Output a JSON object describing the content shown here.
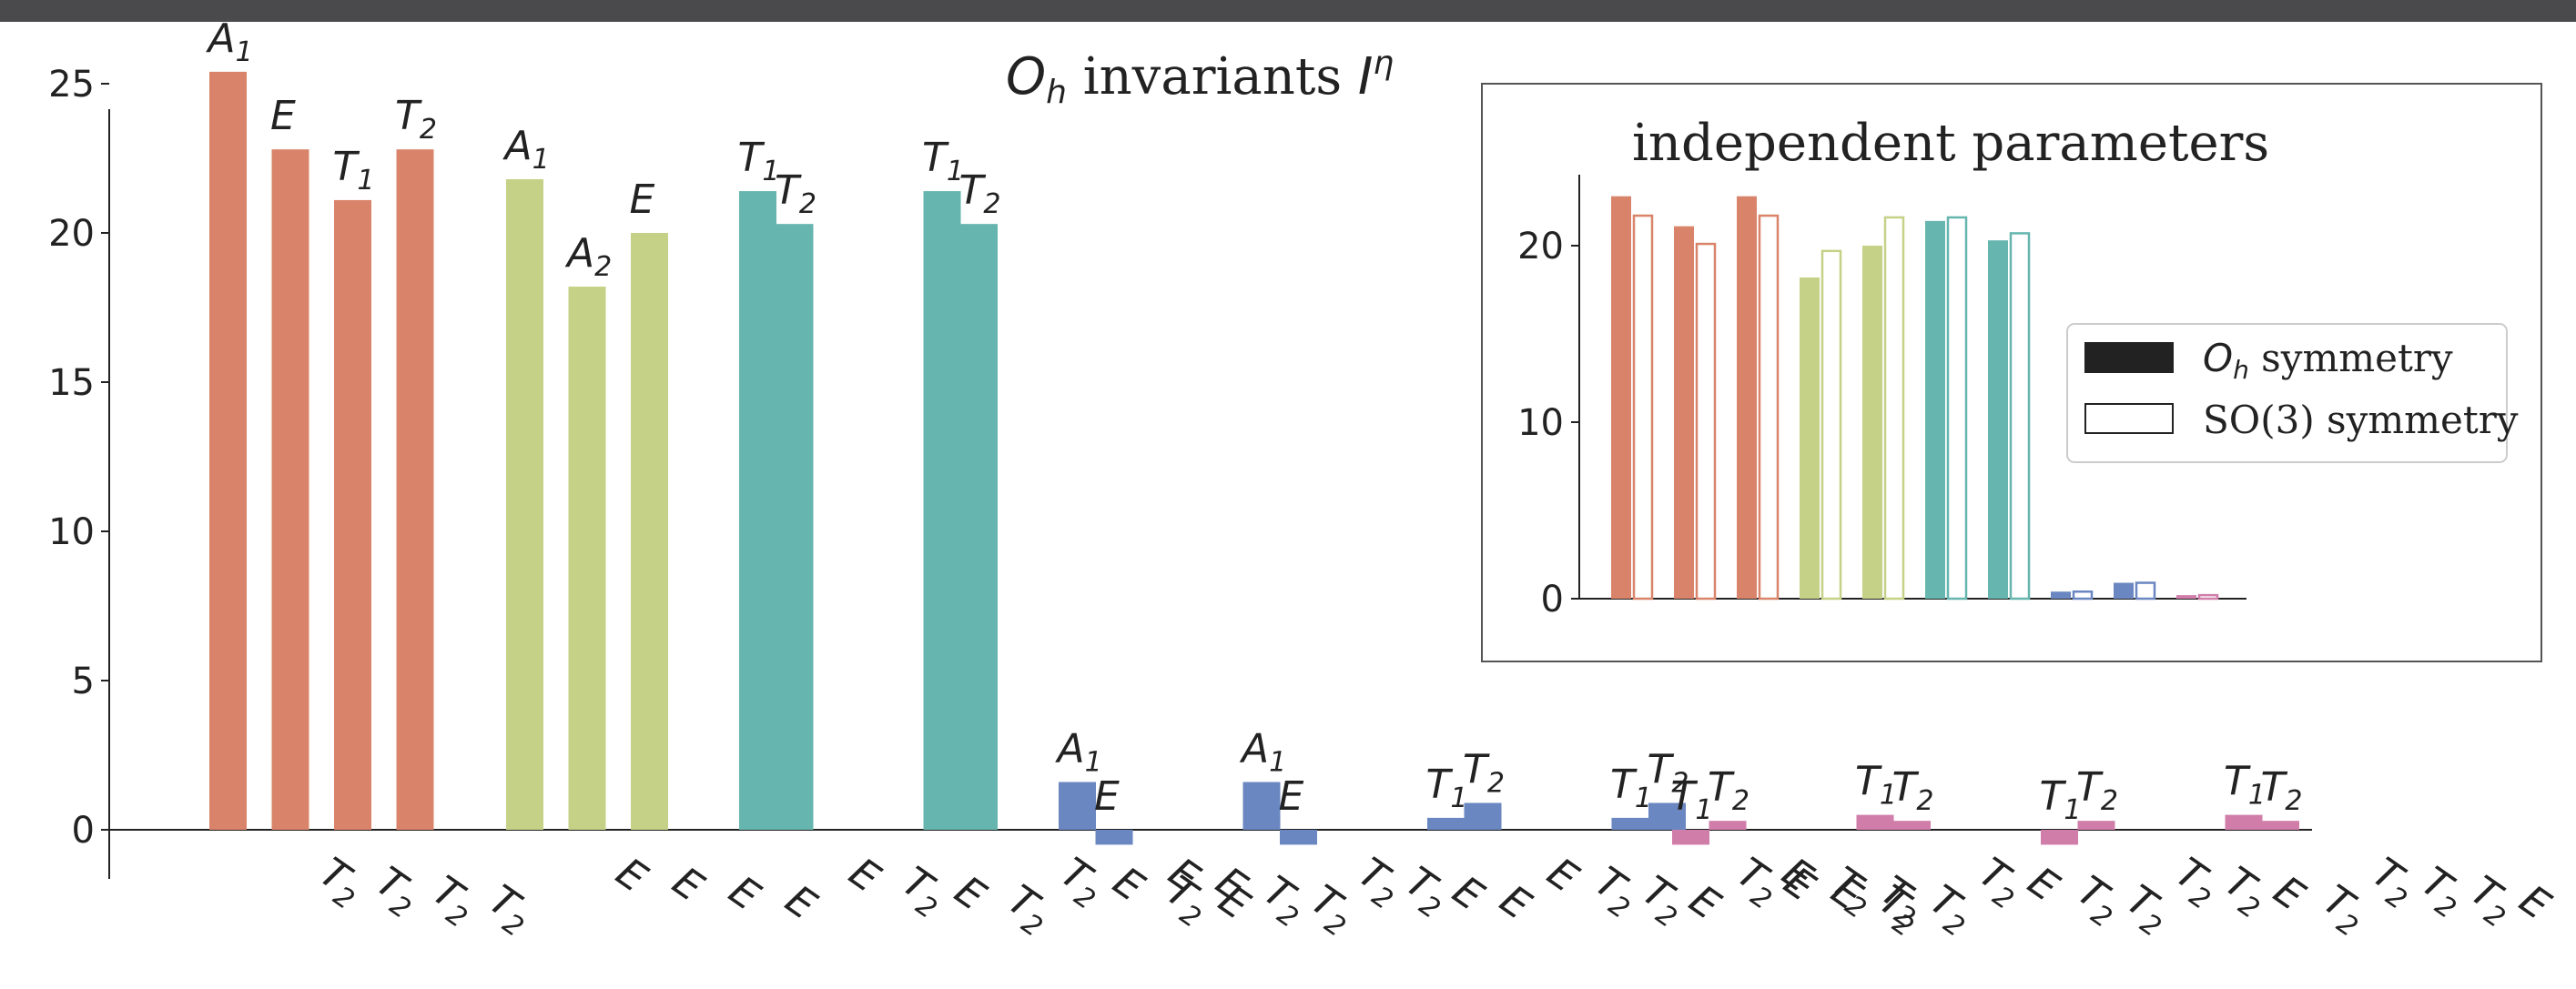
{
  "colors": {
    "group1": "#d9846a",
    "group2": "#c5d186",
    "group3": "#66b5ae",
    "group4": "#6a87c1",
    "group5": "#d07daa"
  },
  "chart_data": [
    {
      "type": "bar",
      "title": "O_h invariants I^η",
      "title_parts": {
        "sym": "O",
        "sub": "h",
        "middle": " invariants ",
        "var": "I",
        "sup": "η"
      },
      "ylim": [
        -1.8,
        26.5
      ],
      "yticks": [
        0,
        5,
        10,
        15,
        20,
        25
      ],
      "groups": [
        {
          "color": "group1",
          "bars": [
            {
              "value": 25.4,
              "top": {
                "base": "A",
                "sub": "1"
              },
              "bottom": {
                "base": "T",
                "sub": "2"
              }
            },
            {
              "value": 22.8,
              "top": {
                "base": "E",
                "sub": ""
              },
              "bottom": {
                "base": "T",
                "sub": "2"
              }
            },
            {
              "value": 21.1,
              "top": {
                "base": "T",
                "sub": "1"
              },
              "bottom": {
                "base": "T",
                "sub": "2"
              }
            },
            {
              "value": 22.8,
              "top": {
                "base": "T",
                "sub": "2"
              },
              "bottom": {
                "base": "T",
                "sub": "2"
              }
            }
          ]
        },
        {
          "color": "group2",
          "bars": [
            {
              "value": 21.8,
              "top": {
                "base": "A",
                "sub": "1"
              },
              "bottom": {
                "base": "E",
                "sub": ""
              }
            },
            {
              "value": 18.2,
              "top": {
                "base": "A",
                "sub": "2"
              },
              "bottom": {
                "base": "E",
                "sub": ""
              }
            },
            {
              "value": 20.0,
              "top": {
                "base": "E",
                "sub": ""
              },
              "bottom": {
                "base": "E",
                "sub": ""
              }
            },
            {
              "value": null,
              "top": null,
              "bottom": {
                "base": "E",
                "sub": ""
              }
            }
          ]
        },
        {
          "color": "group3",
          "bars": [
            {
              "value": 21.4,
              "top": {
                "base": "T",
                "sub": "1"
              },
              "bottom": {
                "base": "E",
                "sub": ""
              }
            },
            {
              "value": 20.3,
              "top": {
                "base": "T",
                "sub": "2"
              },
              "bottom": {
                "base": "T",
                "sub": "2"
              }
            },
            {
              "value": null,
              "top": null,
              "bottom": {
                "base": "E",
                "sub": ""
              }
            },
            {
              "value": null,
              "top": null,
              "bottom": {
                "base": "T",
                "sub": "2"
              }
            },
            {
              "value": 21.4,
              "top": {
                "base": "T",
                "sub": "1"
              },
              "bottom": {
                "base": "T",
                "sub": "2"
              }
            },
            {
              "value": 20.3,
              "top": {
                "base": "T",
                "sub": "2"
              },
              "bottom": {
                "base": "E",
                "sub": ""
              }
            },
            {
              "value": null,
              "top": null,
              "bottom": {
                "base": "T",
                "sub": "2"
              }
            },
            {
              "value": null,
              "top": null,
              "bottom": {
                "base": "E",
                "sub": ""
              }
            }
          ]
        },
        {
          "color": "group4",
          "bars": [
            {
              "value": 1.6,
              "top": {
                "base": "A",
                "sub": "1"
              },
              "bottom": {
                "base": "E",
                "sub": ""
              }
            },
            {
              "value": -0.5,
              "top": {
                "base": "E",
                "sub": ""
              },
              "bottom": {
                "base": "E",
                "sub": ""
              }
            },
            {
              "value": null,
              "top": null,
              "bottom": {
                "base": "T",
                "sub": "2"
              }
            },
            {
              "value": null,
              "top": null,
              "bottom": {
                "base": "T",
                "sub": "2"
              }
            },
            {
              "value": 1.6,
              "top": {
                "base": "A",
                "sub": "1"
              },
              "bottom": {
                "base": "T",
                "sub": "2"
              }
            },
            {
              "value": -0.5,
              "top": {
                "base": "E",
                "sub": ""
              },
              "bottom": {
                "base": "T",
                "sub": "2"
              }
            },
            {
              "value": null,
              "top": null,
              "bottom": {
                "base": "E",
                "sub": ""
              }
            },
            {
              "value": null,
              "top": null,
              "bottom": {
                "base": "E",
                "sub": ""
              }
            },
            {
              "value": 0.4,
              "top": {
                "base": "T",
                "sub": "1"
              },
              "bottom": {
                "base": "E",
                "sub": ""
              }
            },
            {
              "value": 0.9,
              "top": {
                "base": "T",
                "sub": "2"
              },
              "bottom": {
                "base": "T",
                "sub": "2"
              }
            },
            {
              "value": null,
              "top": null,
              "bottom": {
                "base": "T",
                "sub": "2"
              }
            },
            {
              "value": null,
              "top": null,
              "bottom": {
                "base": "E",
                "sub": ""
              }
            },
            {
              "value": 0.4,
              "top": {
                "base": "T",
                "sub": "1"
              },
              "bottom": {
                "base": "T",
                "sub": "2"
              }
            },
            {
              "value": 0.9,
              "top": {
                "base": "T",
                "sub": "2"
              },
              "bottom": {
                "base": "E",
                "sub": ""
              }
            },
            {
              "value": null,
              "top": null,
              "bottom": {
                "base": "E",
                "sub": ""
              }
            },
            {
              "value": null,
              "top": null,
              "bottom": {
                "base": "T",
                "sub": "2"
              }
            }
          ]
        },
        {
          "color": "group5",
          "bars": [
            {
              "value": -0.5,
              "top": {
                "base": "T",
                "sub": "1"
              },
              "bottom": {
                "base": "E",
                "sub": ""
              }
            },
            {
              "value": 0.3,
              "top": {
                "base": "T",
                "sub": "2"
              },
              "bottom": {
                "base": "T",
                "sub": "2"
              }
            },
            {
              "value": null,
              "top": null,
              "bottom": {
                "base": "T",
                "sub": "2"
              }
            },
            {
              "value": null,
              "top": null,
              "bottom": {
                "base": "T",
                "sub": "2"
              }
            },
            {
              "value": 0.5,
              "top": {
                "base": "T",
                "sub": "1"
              },
              "bottom": {
                "base": "T",
                "sub": "2"
              }
            },
            {
              "value": 0.3,
              "top": {
                "base": "T",
                "sub": "2"
              },
              "bottom": {
                "base": "E",
                "sub": ""
              }
            },
            {
              "value": null,
              "top": null,
              "bottom": {
                "base": "T",
                "sub": "2"
              }
            },
            {
              "value": null,
              "top": null,
              "bottom": {
                "base": "T",
                "sub": "2"
              }
            },
            {
              "value": -0.5,
              "top": {
                "base": "T",
                "sub": "1"
              },
              "bottom": {
                "base": "T",
                "sub": "2"
              }
            },
            {
              "value": 0.3,
              "top": {
                "base": "T",
                "sub": "2"
              },
              "bottom": {
                "base": "T",
                "sub": "2"
              }
            },
            {
              "value": null,
              "top": null,
              "bottom": {
                "base": "E",
                "sub": ""
              }
            },
            {
              "value": null,
              "top": null,
              "bottom": {
                "base": "T",
                "sub": "2"
              }
            },
            {
              "value": 0.5,
              "top": {
                "base": "T",
                "sub": "1"
              },
              "bottom": {
                "base": "T",
                "sub": "2"
              }
            },
            {
              "value": 0.3,
              "top": {
                "base": "T",
                "sub": "2"
              },
              "bottom": {
                "base": "T",
                "sub": "2"
              }
            },
            {
              "value": null,
              "top": null,
              "bottom": {
                "base": "T",
                "sub": "2"
              }
            },
            {
              "value": null,
              "top": null,
              "bottom": {
                "base": "E",
                "sub": ""
              }
            }
          ]
        }
      ]
    },
    {
      "type": "bar",
      "title": "independent parameters",
      "ylim": [
        0,
        24
      ],
      "yticks": [
        0,
        10,
        20
      ],
      "legend": {
        "placement": "right",
        "entries": [
          {
            "style": "filled",
            "sym": "O",
            "sub": "h",
            "text": " symmetry"
          },
          {
            "style": "outline",
            "text": "SO(3) symmetry"
          }
        ]
      },
      "series": [
        {
          "name": "O_h symmetry",
          "style": "filled",
          "values": [
            22.8,
            21.1,
            22.8,
            18.2,
            20.0,
            21.4,
            20.3,
            0.4,
            0.9,
            0.2
          ]
        },
        {
          "name": "SO(3) symmetry",
          "style": "outline",
          "values": [
            21.7,
            20.1,
            21.7,
            19.7,
            21.6,
            21.6,
            20.7,
            0.4,
            0.9,
            0.2
          ]
        }
      ],
      "bar_colors": [
        "group1",
        "group1",
        "group1",
        "group2",
        "group2",
        "group3",
        "group3",
        "group4",
        "group4",
        "group5"
      ]
    }
  ]
}
